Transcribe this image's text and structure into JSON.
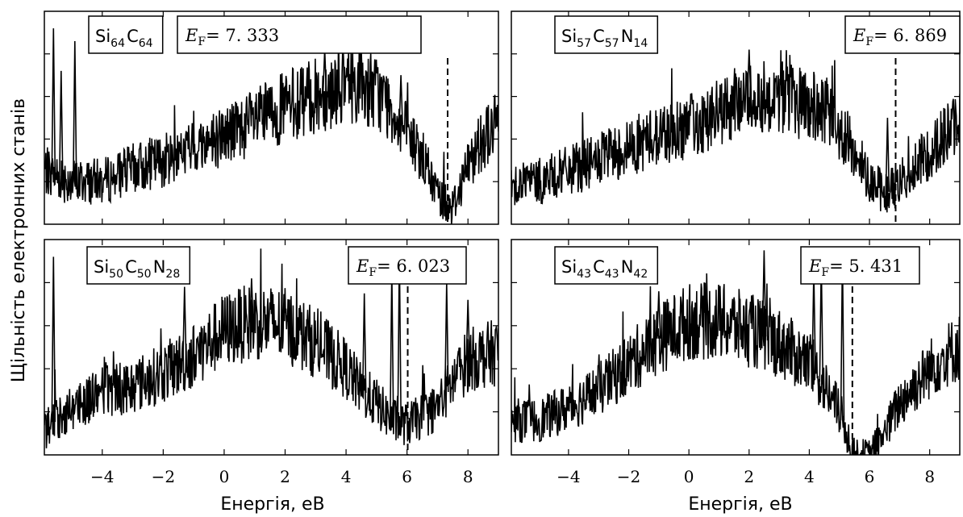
{
  "ylabel": "Щільність електронних станів",
  "xlabel": "Енергія, еВ",
  "chart_data": [
    {
      "type": "line",
      "formula": {
        "el1": "Si",
        "s1": "64",
        "el2": "C",
        "s2": "64",
        "el3": "",
        "s3": ""
      },
      "fermi_label": "E",
      "fermi_sub": "F",
      "fermi_text": "= 7. 333",
      "fermi_energy": 7.333,
      "xlim": [
        -5.9,
        9.0
      ],
      "xticks": [
        "−4",
        "−2",
        "0",
        "2",
        "4",
        "6",
        "8"
      ],
      "xtick_values": [
        -4,
        -2,
        0,
        2,
        4,
        6,
        8
      ],
      "grid": false,
      "envelope": {
        "x": [
          -5.9,
          -5.0,
          -4.0,
          -3.0,
          -2.0,
          -1.0,
          0.0,
          1.0,
          2.0,
          3.0,
          4.0,
          4.5,
          5.0,
          5.5,
          6.0,
          6.5,
          7.0,
          7.5,
          8.0,
          8.5,
          9.0
        ],
        "y": [
          0.25,
          0.2,
          0.2,
          0.26,
          0.3,
          0.36,
          0.42,
          0.48,
          0.55,
          0.6,
          0.66,
          0.66,
          0.62,
          0.54,
          0.42,
          0.32,
          0.14,
          0.08,
          0.28,
          0.4,
          0.48
        ]
      },
      "spikes": [
        {
          "x": -5.6,
          "y": 0.92
        },
        {
          "x": -5.35,
          "y": 0.72
        },
        {
          "x": -4.9,
          "y": 0.86
        },
        {
          "x": 5.8,
          "y": 0.7
        },
        {
          "x": 3.3,
          "y": 0.82
        }
      ]
    },
    {
      "type": "line",
      "formula": {
        "el1": "Si",
        "s1": "57",
        "el2": "C",
        "s2": "57",
        "el3": "N",
        "s3": "14"
      },
      "fermi_label": "E",
      "fermi_sub": "F",
      "fermi_text": "= 6. 869",
      "fermi_energy": 6.869,
      "xlim": [
        -5.9,
        9.0
      ],
      "xticks": [
        "−4",
        "−2",
        "0",
        "2",
        "4",
        "6",
        "8"
      ],
      "xtick_values": [
        -4,
        -2,
        0,
        2,
        4,
        6,
        8
      ],
      "grid": false,
      "envelope": {
        "x": [
          -5.9,
          -5.0,
          -4.0,
          -3.0,
          -2.0,
          -1.0,
          0.0,
          1.0,
          2.0,
          3.0,
          4.0,
          4.5,
          5.0,
          5.5,
          6.0,
          6.5,
          7.0,
          7.5,
          8.0,
          8.5,
          9.0
        ],
        "y": [
          0.2,
          0.2,
          0.25,
          0.3,
          0.36,
          0.42,
          0.46,
          0.52,
          0.6,
          0.6,
          0.56,
          0.52,
          0.45,
          0.34,
          0.22,
          0.14,
          0.2,
          0.26,
          0.34,
          0.42,
          0.48
        ]
      },
      "spikes": [
        {
          "x": 2.0,
          "y": 0.82
        },
        {
          "x": 6.6,
          "y": 0.5
        }
      ]
    },
    {
      "type": "line",
      "formula": {
        "el1": "Si",
        "s1": "50",
        "el2": "C",
        "s2": "50",
        "el3": "N",
        "s3": "28"
      },
      "fermi_label": "E",
      "fermi_sub": "F",
      "fermi_text": "= 6. 023",
      "fermi_energy": 6.023,
      "xlim": [
        -5.9,
        9.0
      ],
      "xticks": [
        "−4",
        "−2",
        "0",
        "2",
        "4",
        "6",
        "8"
      ],
      "xtick_values": [
        -4,
        -2,
        0,
        2,
        4,
        6,
        8
      ],
      "grid": false,
      "envelope": {
        "x": [
          -5.9,
          -5.0,
          -4.0,
          -3.0,
          -2.0,
          -1.0,
          0.0,
          1.0,
          2.0,
          3.0,
          4.0,
          4.5,
          5.0,
          5.5,
          6.0,
          6.5,
          7.0,
          7.5,
          8.0,
          8.5,
          9.0
        ],
        "y": [
          0.12,
          0.22,
          0.3,
          0.32,
          0.38,
          0.46,
          0.58,
          0.62,
          0.6,
          0.52,
          0.4,
          0.3,
          0.24,
          0.16,
          0.14,
          0.18,
          0.22,
          0.34,
          0.44,
          0.46,
          0.48
        ]
      },
      "spikes": [
        {
          "x": -5.6,
          "y": 0.92
        },
        {
          "x": -1.3,
          "y": 0.78
        },
        {
          "x": 0.9,
          "y": 0.82
        },
        {
          "x": 4.6,
          "y": 0.75
        },
        {
          "x": 5.5,
          "y": 0.86
        },
        {
          "x": 5.75,
          "y": 0.95
        },
        {
          "x": 7.3,
          "y": 0.8
        },
        {
          "x": 8.0,
          "y": 0.72
        }
      ]
    },
    {
      "type": "line",
      "formula": {
        "el1": "Si",
        "s1": "43",
        "el2": "C",
        "s2": "43",
        "el3": "N",
        "s3": "42"
      },
      "fermi_label": "E",
      "fermi_sub": "F",
      "fermi_text": "= 5. 431",
      "fermi_energy": 5.431,
      "xlim": [
        -5.9,
        9.0
      ],
      "xticks": [
        "−4",
        "−2",
        "0",
        "2",
        "4",
        "6",
        "8"
      ],
      "xtick_values": [
        -4,
        -2,
        0,
        2,
        4,
        6,
        8
      ],
      "grid": false,
      "envelope": {
        "x": [
          -5.9,
          -5.0,
          -4.0,
          -3.0,
          -2.0,
          -1.0,
          0.0,
          1.0,
          2.0,
          3.0,
          4.0,
          4.5,
          5.0,
          5.5,
          6.0,
          6.5,
          7.0,
          7.5,
          8.0,
          8.5,
          9.0
        ],
        "y": [
          0.16,
          0.16,
          0.22,
          0.3,
          0.42,
          0.54,
          0.62,
          0.62,
          0.58,
          0.52,
          0.42,
          0.32,
          0.2,
          0.0,
          0.0,
          0.1,
          0.24,
          0.32,
          0.4,
          0.46,
          0.5
        ]
      },
      "spikes": [
        {
          "x": -1.0,
          "y": 0.76
        },
        {
          "x": 2.5,
          "y": 0.95
        },
        {
          "x": 4.15,
          "y": 0.86
        },
        {
          "x": 4.4,
          "y": 0.9
        },
        {
          "x": 5.1,
          "y": 0.95
        }
      ]
    }
  ]
}
